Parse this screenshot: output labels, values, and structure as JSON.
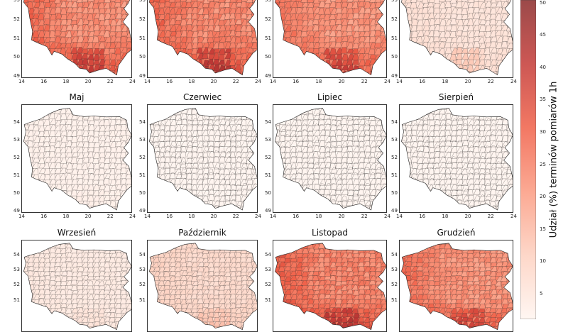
{
  "colorbar": {
    "label": "Udział (%) terminów pomiarów 1h",
    "min": 0,
    "max": 50,
    "ticks": [
      5,
      10,
      15,
      20,
      25,
      30,
      35,
      40,
      45,
      50
    ],
    "colors": [
      "#fff5f0",
      "#fdd0bf",
      "#fb9a80",
      "#f06048",
      "#c43a36",
      "#8a2a2a"
    ]
  },
  "chart_data": [
    {
      "type": "heatmap",
      "title": "",
      "lon_ticks": [
        14,
        16,
        18,
        20,
        22,
        24
      ],
      "lat_ticks": [
        49,
        50,
        51,
        52,
        53
      ],
      "mean_share": 25
    },
    {
      "type": "heatmap",
      "title": "",
      "lon_ticks": [
        14,
        16,
        18,
        20,
        22,
        24
      ],
      "lat_ticks": [
        49,
        50,
        51,
        52,
        53
      ],
      "mean_share": 26
    },
    {
      "type": "heatmap",
      "title": "",
      "lon_ticks": [
        14,
        16,
        18,
        20,
        22,
        24
      ],
      "lat_ticks": [
        49,
        50,
        51,
        52,
        53
      ],
      "mean_share": 24
    },
    {
      "type": "heatmap",
      "title": "",
      "lon_ticks": [
        14,
        16,
        18,
        20,
        22,
        24
      ],
      "lat_ticks": [
        49,
        50,
        51,
        52,
        53
      ],
      "mean_share": 5
    },
    {
      "type": "heatmap",
      "title": "Maj",
      "lon_ticks": [
        14,
        16,
        18,
        20,
        22,
        24
      ],
      "lat_ticks": [
        49,
        50,
        51,
        52,
        53,
        54
      ],
      "mean_share": 1
    },
    {
      "type": "heatmap",
      "title": "Czerwiec",
      "lon_ticks": [
        14,
        16,
        18,
        20,
        22,
        24
      ],
      "lat_ticks": [
        49,
        50,
        51,
        52,
        53,
        54
      ],
      "mean_share": 0
    },
    {
      "type": "heatmap",
      "title": "Lipiec",
      "lon_ticks": [
        14,
        16,
        18,
        20,
        22,
        24
      ],
      "lat_ticks": [
        49,
        50,
        51,
        52,
        53,
        54
      ],
      "mean_share": 0
    },
    {
      "type": "heatmap",
      "title": "Sierpień",
      "lon_ticks": [
        14,
        16,
        18,
        20,
        22,
        24
      ],
      "lat_ticks": [
        49,
        50,
        51,
        52,
        53,
        54
      ],
      "mean_share": 0
    },
    {
      "type": "heatmap",
      "title": "Wrzesień",
      "lon_ticks": [],
      "lat_ticks": [
        51,
        52,
        53,
        54
      ],
      "mean_share": 3
    },
    {
      "type": "heatmap",
      "title": "Październik",
      "lon_ticks": [],
      "lat_ticks": [
        51,
        52,
        53,
        54
      ],
      "mean_share": 8
    },
    {
      "type": "heatmap",
      "title": "Listopad",
      "lon_ticks": [],
      "lat_ticks": [
        51,
        52,
        53,
        54
      ],
      "mean_share": 27
    },
    {
      "type": "heatmap",
      "title": "Grudzień",
      "lon_ticks": [],
      "lat_ticks": [
        51,
        52,
        53,
        54
      ],
      "mean_share": 24
    }
  ]
}
